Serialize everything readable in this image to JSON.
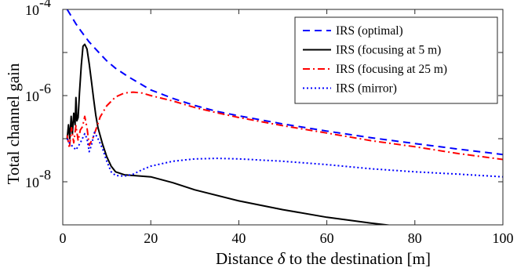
{
  "chart_data": {
    "type": "line",
    "xlabel_parts": [
      "Distance ",
      "δ",
      " to the destination [m]"
    ],
    "ylabel": "Total channel gain",
    "x_scale": "linear",
    "y_scale": "log",
    "xlim": [
      0,
      100
    ],
    "ylim": [
      1e-09,
      0.0001
    ],
    "x_ticks": [
      0,
      20,
      40,
      60,
      80,
      100
    ],
    "x_tick_labels": [
      "0",
      "20",
      "40",
      "60",
      "80",
      "100"
    ],
    "y_ticks": [
      1e-08,
      1e-06,
      0.0001
    ],
    "y_tick_labels": [
      {
        "base": "10",
        "exp": "-8"
      },
      {
        "base": "10",
        "exp": "-6"
      },
      {
        "base": "10",
        "exp": "-4"
      }
    ],
    "grid": false,
    "legend_position": "top-right",
    "series": [
      {
        "name": "IRS (optimal)",
        "color": "#0000ff",
        "dash": "dashed",
        "points": [
          [
            1,
            0.0001
          ],
          [
            2,
            6.8e-05
          ],
          [
            3,
            4.6e-05
          ],
          [
            4,
            3.3e-05
          ],
          [
            5,
            2.4e-05
          ],
          [
            6,
            1.75e-05
          ],
          [
            8,
            1.05e-05
          ],
          [
            10,
            6.4e-06
          ],
          [
            12,
            4.3e-06
          ],
          [
            15,
            2.7e-06
          ],
          [
            20,
            1.35e-06
          ],
          [
            25,
            8.6e-07
          ],
          [
            30,
            5.9e-07
          ],
          [
            35,
            4.3e-07
          ],
          [
            40,
            3.4e-07
          ],
          [
            50,
            2.2e-07
          ],
          [
            60,
            1.5e-07
          ],
          [
            70,
            1.05e-07
          ],
          [
            80,
            7.7e-08
          ],
          [
            90,
            5.7e-08
          ],
          [
            100,
            4.3e-08
          ]
        ]
      },
      {
        "name": "IRS (focusing at 5 m)",
        "color": "#000000",
        "dash": "solid",
        "points": [
          [
            1,
            1e-07
          ],
          [
            1.3,
            2.1e-07
          ],
          [
            1.6,
            1e-07
          ],
          [
            1.9,
            3.3e-07
          ],
          [
            2.2,
            1.3e-07
          ],
          [
            2.5,
            3.9e-07
          ],
          [
            2.8,
            2.1e-07
          ],
          [
            3.0,
            9e-07
          ],
          [
            3.2,
            2.6e-07
          ],
          [
            3.5,
            3.1e-07
          ],
          [
            3.8,
            1.15e-06
          ],
          [
            4.2,
            5e-06
          ],
          [
            4.6,
            1.4e-05
          ],
          [
            5,
            1.55e-05
          ],
          [
            5.5,
            1.2e-05
          ],
          [
            6,
            5.5e-06
          ],
          [
            6.5,
            2.2e-06
          ],
          [
            7,
            8.5e-07
          ],
          [
            7.5,
            3.5e-07
          ],
          [
            8,
            1.8e-07
          ],
          [
            9,
            7.7e-08
          ],
          [
            10,
            3.8e-08
          ],
          [
            11,
            2.3e-08
          ],
          [
            12,
            1.7e-08
          ],
          [
            14,
            1.45e-08
          ],
          [
            16,
            1.4e-08
          ],
          [
            20,
            1.3e-08
          ],
          [
            25,
            9.5e-09
          ],
          [
            30,
            6.5e-09
          ],
          [
            40,
            3.6e-09
          ],
          [
            50,
            2.25e-09
          ],
          [
            60,
            1.5e-09
          ],
          [
            70,
            1.1e-09
          ],
          [
            76,
            9.3e-10
          ]
        ]
      },
      {
        "name": "IRS (focusing at 25 m)",
        "color": "#ff0000",
        "dash": "dashdot",
        "points": [
          [
            1,
            1.2e-07
          ],
          [
            1.5,
            6e-08
          ],
          [
            2,
            1.8e-07
          ],
          [
            2.5,
            8e-08
          ],
          [
            3,
            2e-07
          ],
          [
            3.5,
            9e-08
          ],
          [
            4,
            1.6e-07
          ],
          [
            4.5,
            1.9e-07
          ],
          [
            5,
            3.3e-07
          ],
          [
            5.5,
            1.8e-07
          ],
          [
            6,
            7e-08
          ],
          [
            6.8,
            1e-07
          ],
          [
            7.5,
            1.6e-07
          ],
          [
            8.5,
            3.2e-07
          ],
          [
            10,
            5.8e-07
          ],
          [
            12,
            9.3e-07
          ],
          [
            14,
            1.15e-06
          ],
          [
            16,
            1.2e-06
          ],
          [
            18,
            1.15e-06
          ],
          [
            20,
            1e-06
          ],
          [
            25,
            7.5e-07
          ],
          [
            30,
            5.3e-07
          ],
          [
            35,
            4e-07
          ],
          [
            40,
            3.1e-07
          ],
          [
            50,
            2e-07
          ],
          [
            60,
            1.35e-07
          ],
          [
            70,
            9e-08
          ],
          [
            80,
            6.5e-08
          ],
          [
            90,
            4.5e-08
          ],
          [
            100,
            3.3e-08
          ]
        ]
      },
      {
        "name": "IRS (mirror)",
        "color": "#0000ff",
        "dash": "dotted",
        "points": [
          [
            1,
            1e-07
          ],
          [
            1.5,
            8e-08
          ],
          [
            2,
            7e-08
          ],
          [
            3,
            5.5e-08
          ],
          [
            4,
            8e-08
          ],
          [
            5,
            1.3e-07
          ],
          [
            5.5,
            1e-07
          ],
          [
            6,
            5e-08
          ],
          [
            6.5,
            7e-08
          ],
          [
            7.2,
            1.4e-07
          ],
          [
            8,
            1e-07
          ],
          [
            9,
            6e-08
          ],
          [
            10,
            3e-08
          ],
          [
            11,
            1.7e-08
          ],
          [
            12,
            1.4e-08
          ],
          [
            14,
            1.35e-08
          ],
          [
            16,
            1.5e-08
          ],
          [
            18,
            1.9e-08
          ],
          [
            20,
            2.3e-08
          ],
          [
            25,
            3e-08
          ],
          [
            30,
            3.4e-08
          ],
          [
            35,
            3.5e-08
          ],
          [
            40,
            3.4e-08
          ],
          [
            50,
            3e-08
          ],
          [
            60,
            2.5e-08
          ],
          [
            70,
            2e-08
          ],
          [
            80,
            1.7e-08
          ],
          [
            90,
            1.5e-08
          ],
          [
            100,
            1.3e-08
          ]
        ]
      }
    ]
  }
}
